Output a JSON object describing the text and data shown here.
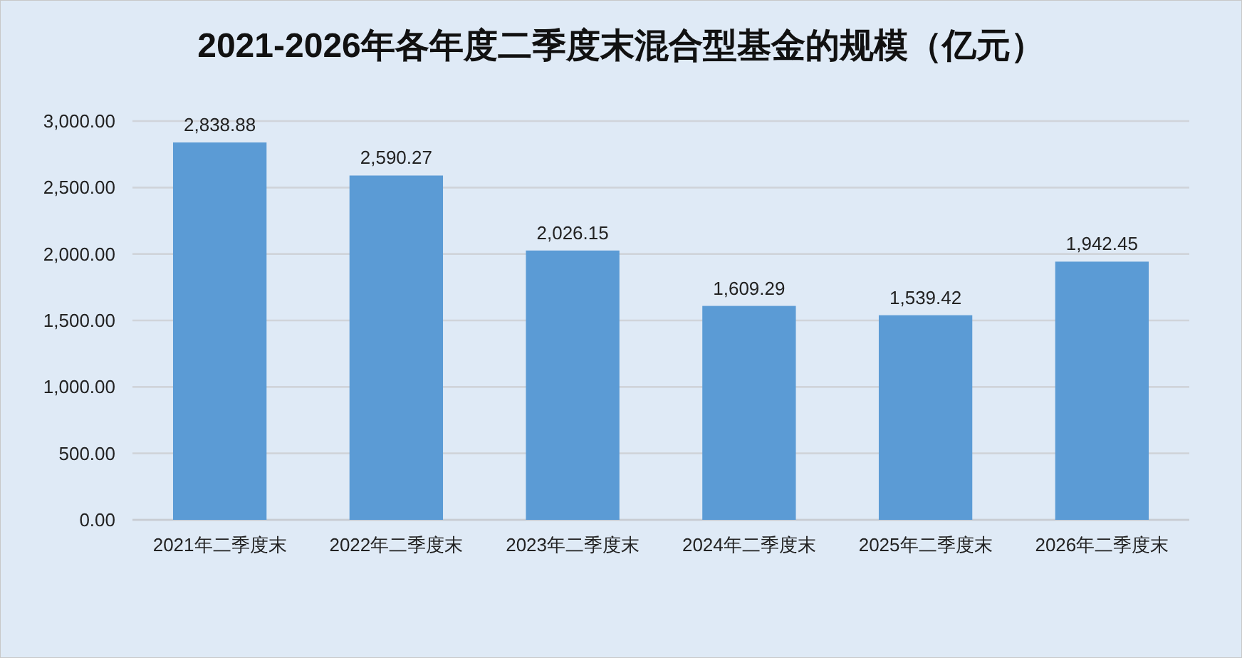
{
  "chart_data": {
    "type": "bar",
    "title": "2021-2026年各年度二季度末混合型基金的规模（亿元）",
    "categories": [
      "2021年二季度末",
      "2022年二季度末",
      "2023年二季度末",
      "2024年二季度末",
      "2025年二季度末",
      "2026年二季度末"
    ],
    "values": [
      2838.88,
      2590.27,
      2026.15,
      1609.29,
      1539.42,
      1942.45
    ],
    "color": "#5b9bd5",
    "ylim": [
      0,
      3000
    ],
    "yticks": [
      {
        "value": 0,
        "label": "0.00"
      },
      {
        "value": 500,
        "label": "500.00"
      },
      {
        "value": 1000,
        "label": "1,000.00"
      },
      {
        "value": 1500,
        "label": "1,500.00"
      },
      {
        "value": 2000,
        "label": "2,000.00"
      },
      {
        "value": 2500,
        "label": "2,500.00"
      },
      {
        "value": 3000,
        "label": "3,000.00"
      }
    ],
    "grid": "y",
    "value_labels": [
      "2,838.88",
      "2,590.27",
      "2,026.15",
      "1,609.29",
      "1,539.42",
      "1,942.45"
    ]
  }
}
